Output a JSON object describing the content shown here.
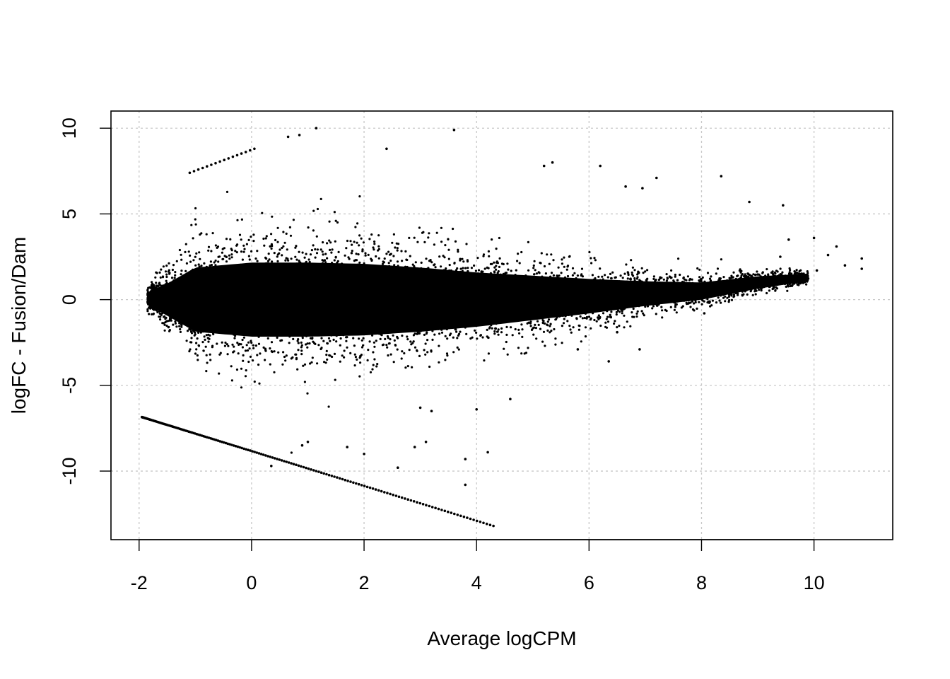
{
  "chart_data": {
    "type": "scatter",
    "title": "",
    "xlabel": "Average logCPM",
    "ylabel": "logFC - Fusion/Dam",
    "xlim": [
      -2.5,
      11.4
    ],
    "ylim": [
      -14.0,
      11.0
    ],
    "x_ticks": [
      -2,
      0,
      2,
      4,
      6,
      8,
      10
    ],
    "y_ticks": [
      -10,
      -5,
      0,
      5,
      10
    ],
    "x_tick_labels": [
      "-2",
      "0",
      "2",
      "4",
      "6",
      "8",
      "10"
    ],
    "y_tick_labels": [
      "-10",
      "-5",
      "0",
      "5",
      "10"
    ],
    "grid": true,
    "grid_style": "dotted",
    "grid_color": "#c8c8c8",
    "point_color": "#000000",
    "series": [
      {
        "description_of_density": "dense cloud",
        "dense_band": {
          "x_start": -1.85,
          "x_end": 9.9,
          "center_profile": [
            [
              -1.85,
              0.05
            ],
            [
              -1.5,
              0.0
            ],
            [
              -1.0,
              0.0
            ],
            [
              0.0,
              0.0
            ],
            [
              2.0,
              0.0
            ],
            [
              4.0,
              0.0
            ],
            [
              6.0,
              0.2
            ],
            [
              8.0,
              0.5
            ],
            [
              9.0,
              1.0
            ],
            [
              9.9,
              1.3
            ]
          ],
          "spread_profile": [
            [
              -1.85,
              0.5
            ],
            [
              -1.5,
              1.3
            ],
            [
              -1.0,
              2.6
            ],
            [
              0.0,
              3.0
            ],
            [
              1.0,
              3.0
            ],
            [
              2.0,
              2.9
            ],
            [
              3.0,
              2.6
            ],
            [
              4.0,
              2.2
            ],
            [
              5.0,
              1.8
            ],
            [
              6.0,
              1.4
            ],
            [
              7.0,
              1.0
            ],
            [
              8.0,
              0.7
            ],
            [
              9.0,
              0.5
            ],
            [
              9.9,
              0.3
            ]
          ]
        },
        "lower_line": {
          "x_start": -1.95,
          "x_end": 4.3,
          "y_at_start": -6.85,
          "y_at_end": -13.2
        },
        "upper_line": {
          "x_start": -1.1,
          "x_end": 0.05,
          "y_at_start": 7.4,
          "y_at_end": 8.8
        },
        "outliers": [
          [
            1.15,
            10.0
          ],
          [
            3.6,
            9.9
          ],
          [
            0.65,
            9.5
          ],
          [
            0.85,
            9.6
          ],
          [
            2.4,
            8.8
          ],
          [
            5.35,
            8.0
          ],
          [
            5.2,
            7.8
          ],
          [
            6.2,
            7.8
          ],
          [
            7.2,
            7.1
          ],
          [
            8.35,
            7.2
          ],
          [
            6.65,
            6.6
          ],
          [
            6.95,
            6.5
          ],
          [
            9.45,
            5.5
          ],
          [
            8.85,
            5.7
          ],
          [
            10.0,
            3.6
          ],
          [
            10.4,
            3.1
          ],
          [
            10.25,
            2.6
          ],
          [
            10.55,
            2.0
          ],
          [
            10.85,
            2.4
          ],
          [
            10.85,
            1.8
          ],
          [
            10.05,
            1.7
          ],
          [
            9.7,
            1.2
          ],
          [
            9.55,
            3.5
          ],
          [
            9.4,
            2.5
          ],
          [
            2.6,
            -9.8
          ],
          [
            3.0,
            -6.3
          ],
          [
            3.2,
            -6.5
          ],
          [
            3.8,
            -9.3
          ],
          [
            3.8,
            -10.8
          ],
          [
            4.2,
            -8.9
          ],
          [
            4.0,
            -6.4
          ],
          [
            3.1,
            -8.3
          ],
          [
            2.9,
            -8.6
          ],
          [
            4.6,
            -5.8
          ],
          [
            5.8,
            -2.9
          ],
          [
            6.9,
            -2.9
          ],
          [
            6.35,
            -3.6
          ],
          [
            6.5,
            -1.9
          ],
          [
            8.05,
            -0.8
          ],
          [
            0.35,
            -9.7
          ],
          [
            0.9,
            -8.5
          ],
          [
            1.0,
            -8.3
          ],
          [
            1.7,
            -8.6
          ],
          [
            2.0,
            -9.0
          ]
        ]
      }
    ]
  }
}
